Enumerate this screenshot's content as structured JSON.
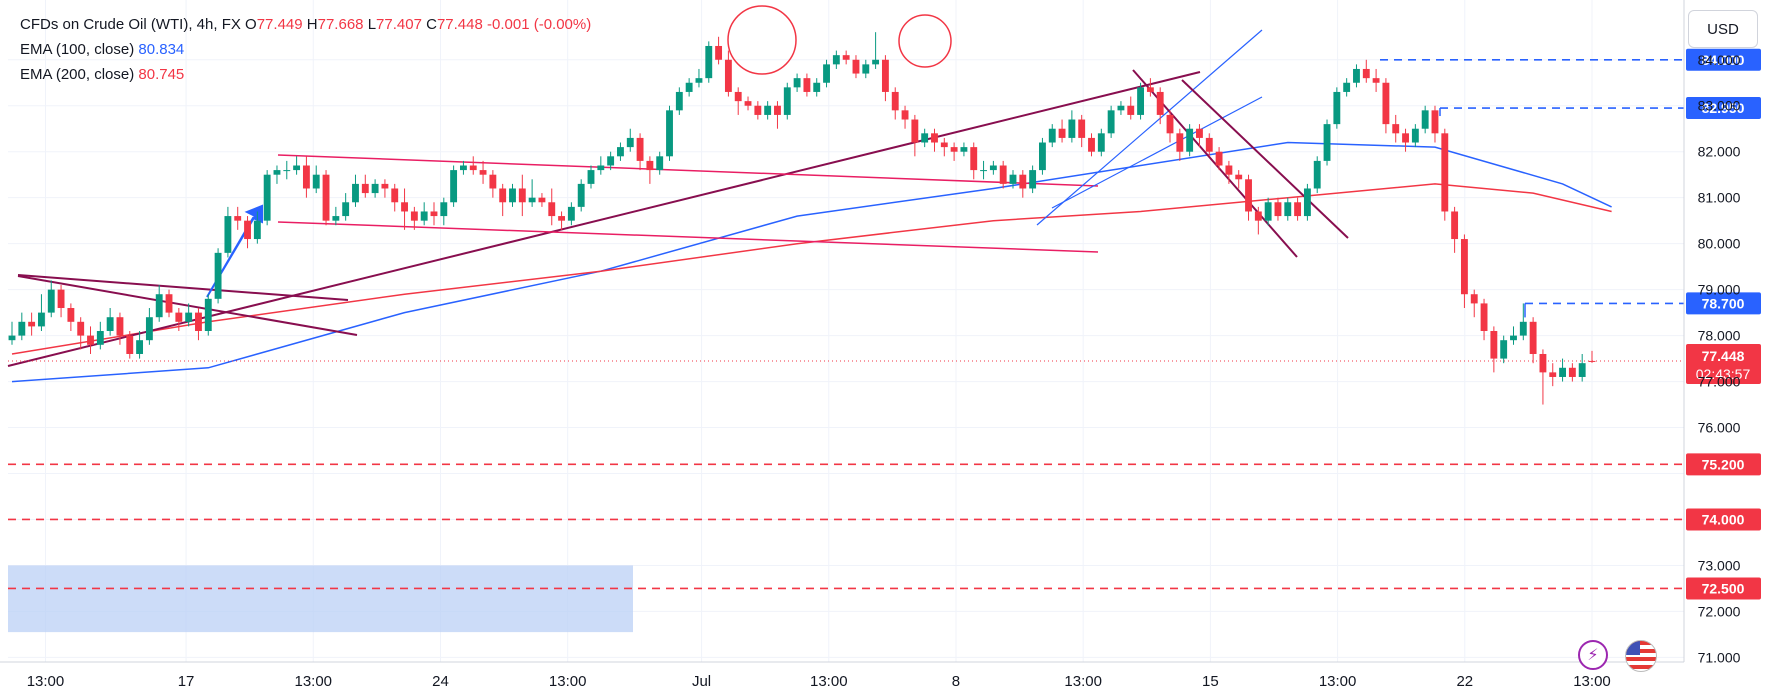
{
  "legend": {
    "symbol": "CFDs on Crude Oil (WTI), 4h, FX",
    "o_label": "O",
    "o_value": "77.449",
    "h_label": "H",
    "h_value": "77.668",
    "l_label": "L",
    "l_value": "77.407",
    "c_label": "C",
    "c_value": "77.448",
    "change": "-0.001 (-0.00%)",
    "ema100_label": "EMA (100, close)",
    "ema100_value": "80.834",
    "ema200_label": "EMA (200, close)",
    "ema200_value": "80.745"
  },
  "currency_button": "USD",
  "countdown": "02:43:57",
  "colors": {
    "up": "#089981",
    "down": "#f23645",
    "ema100": "#2962ff",
    "ema200": "#f23645",
    "resistance": "#2962ff",
    "support": "#f23645",
    "trendline": "#880e4f",
    "channel": "#e91e63",
    "zone": "#bbd0f5"
  },
  "chart_data": {
    "type": "candlestick",
    "timeframe": "4h",
    "x_tick_labels": [
      "13:00",
      "17",
      "13:00",
      "24",
      "13:00",
      "Jul",
      "13:00",
      "8",
      "13:00",
      "15",
      "13:00",
      "22",
      "13:00"
    ],
    "y_tick_labels": [
      "71.000",
      "72.000",
      "73.000",
      "76.000",
      "77.000",
      "78.000",
      "79.000",
      "80.000",
      "81.000",
      "82.000",
      "83.000",
      "84.000"
    ],
    "ylim": [
      70.9,
      85.3
    ],
    "last_price": 77.448,
    "price_levels": [
      {
        "value": 84.0,
        "label": "84.000",
        "style": "dashed",
        "color": "#2962ff",
        "kind": "resistance"
      },
      {
        "value": 82.95,
        "label": "82.950",
        "style": "dashed",
        "color": "#2962ff",
        "kind": "resistance"
      },
      {
        "value": 78.7,
        "label": "78.700",
        "style": "dashed",
        "color": "#2962ff",
        "kind": "resistance"
      },
      {
        "value": 75.2,
        "label": "75.200",
        "style": "dashed",
        "color": "#f23645",
        "kind": "support"
      },
      {
        "value": 74.0,
        "label": "74.000",
        "style": "dashed",
        "color": "#f23645",
        "kind": "support"
      },
      {
        "value": 72.5,
        "label": "72.500",
        "style": "dashed",
        "color": "#f23645",
        "kind": "support"
      }
    ],
    "zone": {
      "from": 71.55,
      "to": 73.0
    },
    "candles": [
      [
        77.9,
        78.0,
        77.8,
        78.3
      ],
      [
        78.0,
        78.3,
        77.9,
        78.5
      ],
      [
        78.3,
        78.2,
        78.0,
        78.5
      ],
      [
        78.2,
        78.5,
        78.1,
        78.9
      ],
      [
        78.5,
        79.0,
        78.4,
        79.2
      ],
      [
        79.0,
        78.6,
        78.4,
        79.1
      ],
      [
        78.6,
        78.3,
        78.1,
        78.7
      ],
      [
        78.3,
        78.0,
        77.7,
        78.4
      ],
      [
        78.0,
        77.8,
        77.6,
        78.2
      ],
      [
        77.8,
        78.1,
        77.7,
        78.3
      ],
      [
        78.1,
        78.4,
        78.0,
        78.6
      ],
      [
        78.4,
        78.0,
        77.8,
        78.5
      ],
      [
        78.0,
        77.6,
        77.5,
        78.1
      ],
      [
        77.6,
        77.9,
        77.5,
        78.1
      ],
      [
        77.9,
        78.4,
        77.8,
        78.6
      ],
      [
        78.4,
        78.9,
        78.3,
        79.1
      ],
      [
        78.9,
        78.5,
        78.4,
        79.0
      ],
      [
        78.5,
        78.3,
        78.1,
        78.6
      ],
      [
        78.3,
        78.5,
        78.2,
        78.7
      ],
      [
        78.5,
        78.1,
        77.9,
        78.6
      ],
      [
        78.1,
        78.8,
        78.0,
        78.9
      ],
      [
        78.8,
        79.8,
        78.7,
        79.9
      ],
      [
        79.8,
        80.6,
        79.7,
        80.8
      ],
      [
        80.6,
        80.5,
        80.3,
        80.8
      ],
      [
        80.5,
        80.1,
        79.9,
        80.6
      ],
      [
        80.1,
        80.5,
        80.0,
        80.7
      ],
      [
        80.5,
        81.5,
        80.4,
        81.6
      ],
      [
        81.5,
        81.6,
        81.3,
        81.7
      ],
      [
        81.6,
        81.6,
        81.4,
        81.8
      ],
      [
        81.6,
        81.7,
        81.5,
        81.9
      ],
      [
        81.7,
        81.2,
        81.0,
        81.9
      ],
      [
        81.2,
        81.5,
        81.1,
        81.7
      ],
      [
        81.5,
        80.5,
        80.4,
        81.6
      ],
      [
        80.5,
        80.6,
        80.4,
        80.8
      ],
      [
        80.6,
        80.9,
        80.5,
        81.1
      ],
      [
        80.9,
        81.3,
        80.8,
        81.5
      ],
      [
        81.3,
        81.1,
        81.0,
        81.5
      ],
      [
        81.1,
        81.3,
        81.0,
        81.4
      ],
      [
        81.3,
        81.2,
        81.0,
        81.4
      ],
      [
        81.2,
        80.9,
        80.7,
        81.3
      ],
      [
        80.9,
        80.7,
        80.3,
        81.2
      ],
      [
        80.7,
        80.5,
        80.3,
        80.8
      ],
      [
        80.5,
        80.7,
        80.4,
        80.9
      ],
      [
        80.7,
        80.6,
        80.4,
        80.9
      ],
      [
        80.6,
        80.9,
        80.4,
        81.0
      ],
      [
        80.9,
        81.6,
        80.8,
        81.7
      ],
      [
        81.6,
        81.7,
        81.5,
        81.8
      ],
      [
        81.7,
        81.6,
        81.5,
        81.9
      ],
      [
        81.6,
        81.5,
        81.3,
        81.8
      ],
      [
        81.5,
        81.2,
        81.0,
        81.6
      ],
      [
        81.2,
        80.9,
        80.6,
        81.3
      ],
      [
        80.9,
        81.2,
        80.8,
        81.3
      ],
      [
        81.2,
        80.9,
        80.6,
        81.5
      ],
      [
        80.9,
        81.0,
        80.8,
        81.4
      ],
      [
        81.0,
        80.9,
        80.8,
        81.1
      ],
      [
        80.9,
        80.6,
        80.4,
        81.2
      ],
      [
        80.6,
        80.5,
        80.3,
        80.7
      ],
      [
        80.5,
        80.8,
        80.4,
        80.9
      ],
      [
        80.8,
        81.3,
        80.7,
        81.4
      ],
      [
        81.3,
        81.6,
        81.2,
        81.7
      ],
      [
        81.6,
        81.7,
        81.5,
        81.9
      ],
      [
        81.7,
        81.9,
        81.6,
        82.0
      ],
      [
        81.9,
        82.1,
        81.8,
        82.2
      ],
      [
        82.1,
        82.3,
        82.0,
        82.5
      ],
      [
        82.3,
        81.8,
        81.6,
        82.4
      ],
      [
        81.8,
        81.6,
        81.3,
        81.9
      ],
      [
        81.6,
        81.9,
        81.5,
        82.0
      ],
      [
        81.9,
        82.9,
        81.8,
        83.0
      ],
      [
        82.9,
        83.3,
        82.8,
        83.4
      ],
      [
        83.3,
        83.5,
        83.2,
        83.6
      ],
      [
        83.5,
        83.6,
        83.4,
        83.8
      ],
      [
        83.6,
        84.3,
        83.5,
        84.4
      ],
      [
        84.3,
        84.0,
        83.9,
        84.5
      ],
      [
        84.0,
        83.3,
        83.2,
        84.2
      ],
      [
        83.3,
        83.1,
        82.8,
        83.4
      ],
      [
        83.1,
        83.0,
        82.9,
        83.2
      ],
      [
        83.0,
        82.8,
        82.7,
        83.1
      ],
      [
        82.8,
        83.0,
        82.7,
        83.1
      ],
      [
        83.0,
        82.8,
        82.5,
        83.1
      ],
      [
        82.8,
        83.4,
        82.7,
        83.5
      ],
      [
        83.4,
        83.6,
        83.3,
        83.7
      ],
      [
        83.6,
        83.3,
        83.2,
        83.7
      ],
      [
        83.3,
        83.5,
        83.2,
        83.6
      ],
      [
        83.5,
        83.9,
        83.4,
        84.0
      ],
      [
        83.9,
        84.1,
        83.8,
        84.2
      ],
      [
        84.1,
        84.0,
        83.9,
        84.2
      ],
      [
        84.0,
        83.7,
        83.6,
        84.1
      ],
      [
        83.7,
        83.9,
        83.6,
        84.0
      ],
      [
        83.9,
        84.0,
        83.8,
        84.6
      ],
      [
        84.0,
        83.3,
        83.1,
        84.1
      ],
      [
        83.3,
        82.9,
        82.7,
        83.4
      ],
      [
        82.9,
        82.7,
        82.5,
        83.0
      ],
      [
        82.7,
        82.2,
        81.9,
        82.8
      ],
      [
        82.2,
        82.4,
        82.1,
        82.5
      ],
      [
        82.4,
        82.2,
        82.0,
        82.5
      ],
      [
        82.2,
        82.1,
        81.9,
        82.3
      ],
      [
        82.1,
        82.0,
        81.8,
        82.2
      ],
      [
        82.0,
        82.1,
        81.9,
        82.2
      ],
      [
        82.1,
        81.6,
        81.4,
        82.2
      ],
      [
        81.6,
        81.6,
        81.4,
        81.8
      ],
      [
        81.6,
        81.7,
        81.5,
        81.8
      ],
      [
        81.7,
        81.3,
        81.2,
        81.8
      ],
      [
        81.3,
        81.5,
        81.2,
        81.6
      ],
      [
        81.5,
        81.2,
        81.0,
        81.6
      ],
      [
        81.2,
        81.6,
        81.1,
        81.7
      ],
      [
        81.6,
        82.2,
        81.5,
        82.3
      ],
      [
        82.2,
        82.5,
        82.1,
        82.6
      ],
      [
        82.5,
        82.3,
        82.2,
        82.7
      ],
      [
        82.3,
        82.7,
        82.2,
        82.9
      ],
      [
        82.7,
        82.3,
        82.1,
        82.8
      ],
      [
        82.3,
        82.0,
        81.9,
        82.4
      ],
      [
        82.0,
        82.4,
        81.9,
        82.5
      ],
      [
        82.4,
        82.9,
        82.3,
        83.0
      ],
      [
        82.9,
        83.0,
        82.8,
        83.1
      ],
      [
        83.0,
        82.8,
        82.7,
        83.2
      ],
      [
        82.8,
        83.4,
        82.7,
        83.5
      ],
      [
        83.4,
        83.3,
        83.2,
        83.6
      ],
      [
        83.3,
        82.8,
        82.6,
        83.4
      ],
      [
        82.8,
        82.4,
        82.2,
        82.9
      ],
      [
        82.4,
        82.0,
        81.8,
        82.5
      ],
      [
        82.0,
        82.5,
        81.9,
        82.6
      ],
      [
        82.5,
        82.3,
        82.1,
        82.6
      ],
      [
        82.3,
        82.0,
        81.9,
        82.4
      ],
      [
        82.0,
        81.7,
        81.6,
        82.1
      ],
      [
        81.7,
        81.5,
        81.3,
        81.8
      ],
      [
        81.5,
        81.4,
        81.2,
        81.6
      ],
      [
        81.4,
        80.7,
        80.5,
        81.5
      ],
      [
        80.7,
        80.5,
        80.2,
        80.8
      ],
      [
        80.5,
        80.9,
        80.4,
        81.0
      ],
      [
        80.9,
        80.6,
        80.5,
        81.0
      ],
      [
        80.6,
        80.9,
        80.5,
        81.0
      ],
      [
        80.9,
        80.6,
        80.5,
        81.0
      ],
      [
        80.6,
        81.2,
        80.5,
        81.3
      ],
      [
        81.2,
        81.8,
        81.1,
        81.9
      ],
      [
        81.8,
        82.6,
        81.7,
        82.7
      ],
      [
        82.6,
        83.3,
        82.5,
        83.4
      ],
      [
        83.3,
        83.5,
        83.2,
        83.6
      ],
      [
        83.5,
        83.8,
        83.4,
        83.9
      ],
      [
        83.8,
        83.6,
        83.5,
        84.0
      ],
      [
        83.6,
        83.5,
        83.3,
        83.8
      ],
      [
        83.5,
        82.6,
        82.4,
        83.6
      ],
      [
        82.6,
        82.4,
        82.2,
        82.8
      ],
      [
        82.4,
        82.2,
        82.0,
        82.5
      ],
      [
        82.2,
        82.5,
        82.1,
        82.6
      ],
      [
        82.5,
        82.9,
        82.4,
        83.0
      ],
      [
        82.9,
        82.4,
        82.2,
        83.0
      ],
      [
        82.4,
        80.7,
        80.5,
        82.5
      ],
      [
        80.7,
        80.1,
        79.8,
        80.8
      ],
      [
        80.1,
        78.9,
        78.6,
        80.2
      ],
      [
        78.9,
        78.7,
        78.4,
        79.0
      ],
      [
        78.7,
        78.1,
        77.9,
        78.8
      ],
      [
        78.1,
        77.5,
        77.2,
        78.2
      ],
      [
        77.5,
        77.9,
        77.4,
        78.0
      ],
      [
        77.9,
        78.0,
        77.8,
        78.2
      ],
      [
        78.0,
        78.3,
        77.9,
        78.7
      ],
      [
        78.3,
        77.6,
        77.4,
        78.4
      ],
      [
        77.6,
        77.2,
        76.5,
        77.7
      ],
      [
        77.2,
        77.1,
        76.9,
        77.4
      ],
      [
        77.1,
        77.3,
        77.0,
        77.5
      ],
      [
        77.3,
        77.1,
        77.0,
        77.4
      ],
      [
        77.1,
        77.4,
        77.0,
        77.6
      ],
      [
        77.449,
        77.448,
        77.407,
        77.668
      ]
    ],
    "ema100": [
      [
        0,
        77.0
      ],
      [
        20,
        77.3
      ],
      [
        40,
        78.5
      ],
      [
        60,
        79.4
      ],
      [
        80,
        80.6
      ],
      [
        100,
        81.2
      ],
      [
        115,
        81.7
      ],
      [
        130,
        82.2
      ],
      [
        145,
        82.1
      ],
      [
        158,
        81.3
      ],
      [
        163,
        80.8
      ]
    ],
    "ema200": [
      [
        0,
        77.6
      ],
      [
        20,
        78.3
      ],
      [
        40,
        78.9
      ],
      [
        60,
        79.4
      ],
      [
        80,
        80.0
      ],
      [
        100,
        80.5
      ],
      [
        115,
        80.7
      ],
      [
        130,
        81.0
      ],
      [
        145,
        81.3
      ],
      [
        155,
        81.1
      ],
      [
        163,
        80.7
      ]
    ]
  }
}
